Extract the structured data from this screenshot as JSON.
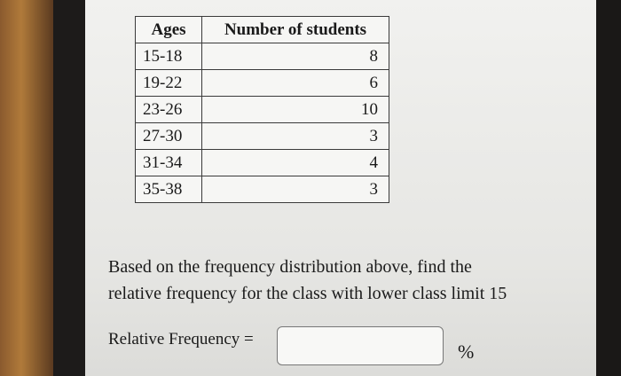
{
  "table": {
    "headers": [
      "Ages",
      "Number of students"
    ],
    "rows": [
      [
        "15-18",
        8
      ],
      [
        "19-22",
        6
      ],
      [
        "23-26",
        10
      ],
      [
        "27-30",
        3
      ],
      [
        "31-34",
        4
      ],
      [
        "35-38",
        3
      ]
    ]
  },
  "question": {
    "lines": [
      "Based on the frequency distribution above, find the",
      "relative frequency for the class with lower class limit 15"
    ]
  },
  "answer": {
    "label": "Relative Frequency =",
    "unit": "%"
  }
}
